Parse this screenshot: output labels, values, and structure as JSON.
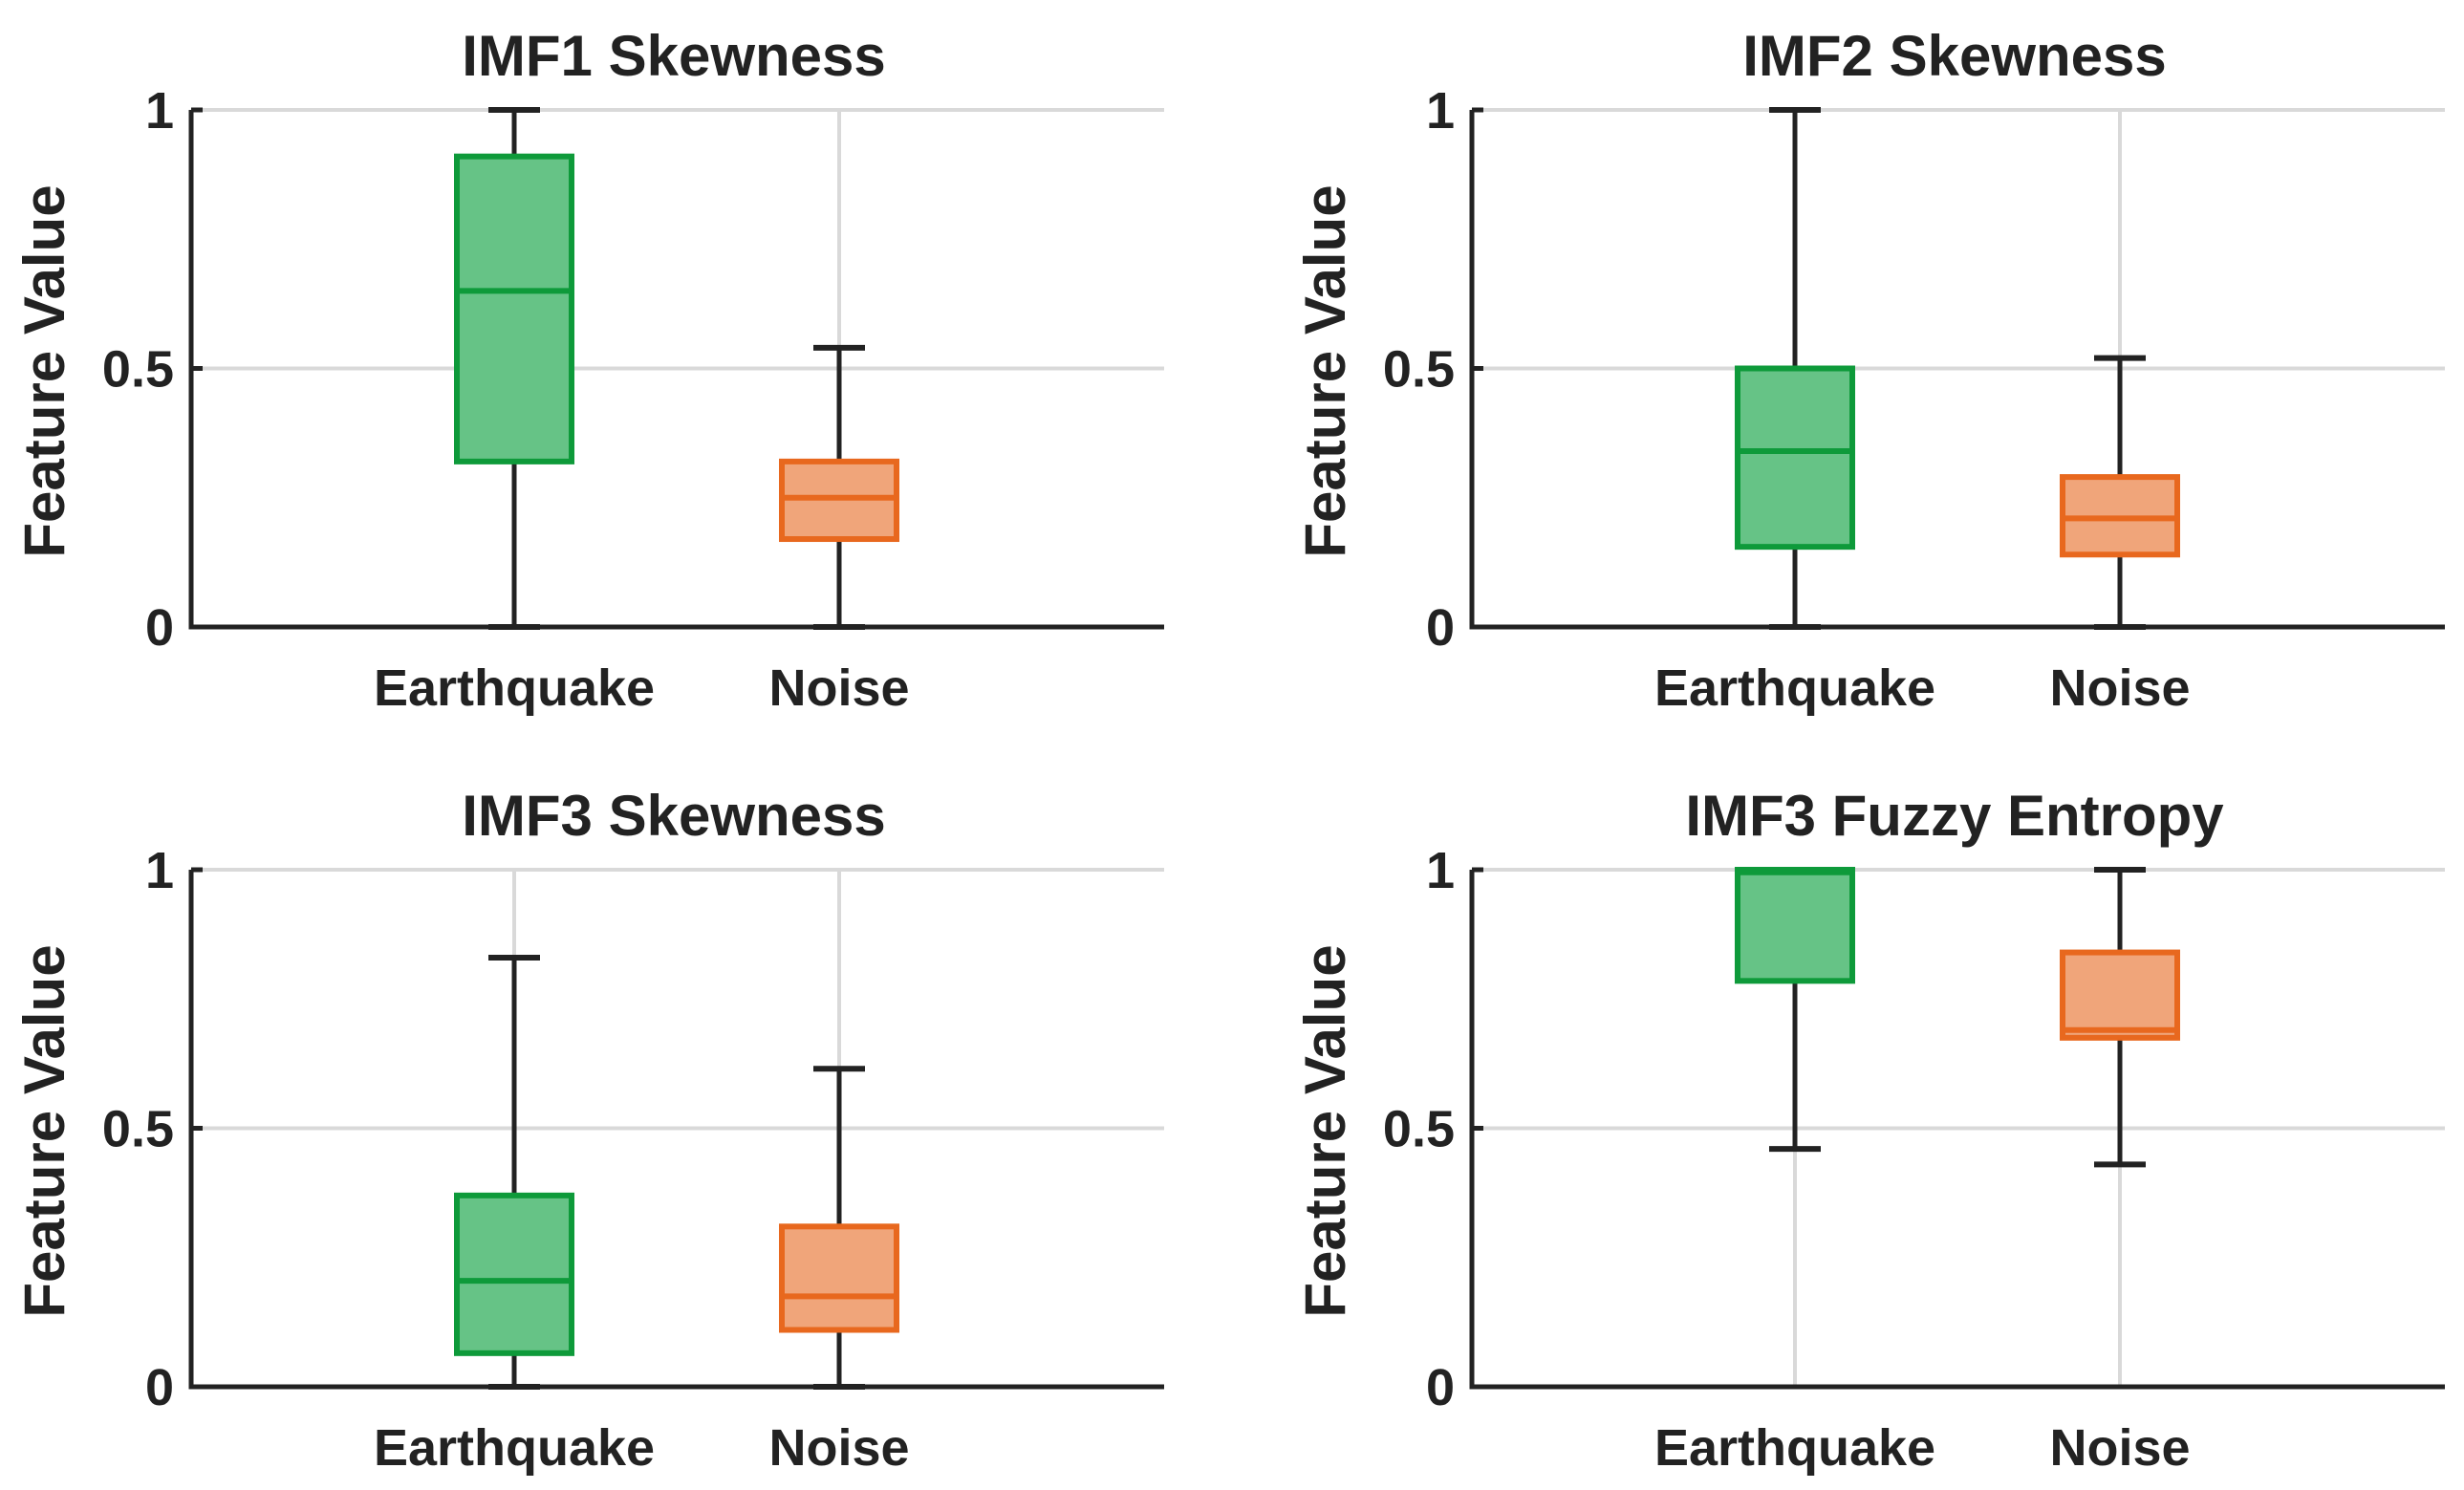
{
  "chart_data": [
    {
      "type": "boxplot",
      "title": "IMF1 Skewness",
      "ylabel": "Feature Value",
      "xlabel": "",
      "ylim": [
        0,
        1
      ],
      "yticks": [
        0,
        0.5,
        1
      ],
      "ytick_labels": [
        "0",
        "0.5",
        "1"
      ],
      "grid": true,
      "categories": [
        "Earthquake",
        "Noise"
      ],
      "boxes": [
        {
          "name": "Earthquake",
          "whisker_low": 0.0,
          "q1": 0.32,
          "median": 0.65,
          "q3": 0.91,
          "whisker_high": 1.0
        },
        {
          "name": "Noise",
          "whisker_low": 0.0,
          "q1": 0.17,
          "median": 0.25,
          "q3": 0.32,
          "whisker_high": 0.54
        }
      ]
    },
    {
      "type": "boxplot",
      "title": "IMF2 Skewness",
      "ylabel": "Feature Value",
      "xlabel": "",
      "ylim": [
        0,
        1
      ],
      "yticks": [
        0,
        0.5,
        1
      ],
      "ytick_labels": [
        "0",
        "0.5",
        "1"
      ],
      "grid": true,
      "categories": [
        "Earthquake",
        "Noise"
      ],
      "boxes": [
        {
          "name": "Earthquake",
          "whisker_low": 0.0,
          "q1": 0.155,
          "median": 0.34,
          "q3": 0.5,
          "whisker_high": 1.0
        },
        {
          "name": "Noise",
          "whisker_low": 0.0,
          "q1": 0.14,
          "median": 0.21,
          "q3": 0.29,
          "whisker_high": 0.52
        }
      ]
    },
    {
      "type": "boxplot",
      "title": "IMF3 Skewness",
      "ylabel": "Feature Value",
      "xlabel": "",
      "ylim": [
        0,
        1
      ],
      "yticks": [
        0,
        0.5,
        1
      ],
      "ytick_labels": [
        "0",
        "0.5",
        "1"
      ],
      "grid": true,
      "categories": [
        "Earthquake",
        "Noise"
      ],
      "boxes": [
        {
          "name": "Earthquake",
          "whisker_low": 0.0,
          "q1": 0.065,
          "median": 0.205,
          "q3": 0.37,
          "whisker_high": 0.83
        },
        {
          "name": "Noise",
          "whisker_low": 0.0,
          "q1": 0.11,
          "median": 0.175,
          "q3": 0.31,
          "whisker_high": 0.615
        }
      ]
    },
    {
      "type": "boxplot",
      "title": "IMF3 Fuzzy Entropy",
      "ylabel": "Feature Value",
      "xlabel": "",
      "ylim": [
        0,
        1
      ],
      "yticks": [
        0,
        0.5,
        1
      ],
      "ytick_labels": [
        "0",
        "0.5",
        "1"
      ],
      "grid": true,
      "categories": [
        "Earthquake",
        "Noise"
      ],
      "boxes": [
        {
          "name": "Earthquake",
          "whisker_low": 0.46,
          "q1": 0.785,
          "median": 0.995,
          "q3": 1.0,
          "whisker_high": 1.0
        },
        {
          "name": "Noise",
          "whisker_low": 0.43,
          "q1": 0.675,
          "median": 0.69,
          "q3": 0.84,
          "whisker_high": 1.0
        }
      ]
    }
  ],
  "colors": {
    "earthquake_fill": "#66c386",
    "earthquake_edge": "#0e9a3a",
    "noise_fill": "#f0a57a",
    "noise_edge": "#e8681e",
    "axis": "#222222",
    "grid": "#d9d9d9"
  }
}
